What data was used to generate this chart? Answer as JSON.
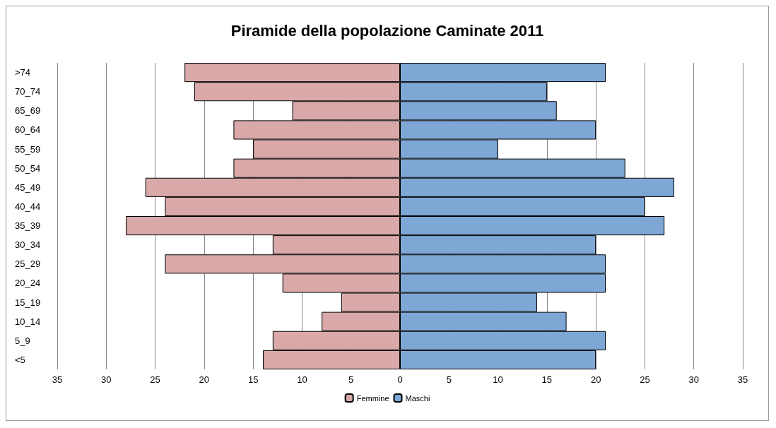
{
  "chart_data": {
    "type": "bar",
    "orientation": "horizontal",
    "title": "Piramide della popolazione Caminate 2011",
    "categories": [
      ">74",
      "70_74",
      "65_69",
      "60_64",
      "55_59",
      "50_54",
      "45_49",
      "40_44",
      "35_39",
      "30_34",
      "25_29",
      "20_24",
      "15_19",
      "10_14",
      "5_9",
      "<5"
    ],
    "series": [
      {
        "name": "Femmine",
        "color": "#d8a9a8",
        "values": [
          -22,
          -21,
          -11,
          -17,
          -15,
          -17,
          -26,
          -24,
          -28,
          -13,
          -24,
          -12,
          -6,
          -8,
          -13,
          -14
        ]
      },
      {
        "name": "Maschi",
        "color": "#7ea7d6",
        "values": [
          21,
          15,
          16,
          20,
          10,
          23,
          28,
          25,
          27,
          20,
          21,
          21,
          14,
          17,
          21,
          20
        ]
      }
    ],
    "xlim": [
      -35,
      35
    ],
    "xticks": [
      {
        "value": -35,
        "label": "35"
      },
      {
        "value": -30,
        "label": "30"
      },
      {
        "value": -25,
        "label": "25"
      },
      {
        "value": -20,
        "label": "20"
      },
      {
        "value": -15,
        "label": "15"
      },
      {
        "value": -10,
        "label": "10"
      },
      {
        "value": -5,
        "label": "5"
      },
      0,
      5,
      10,
      15,
      20,
      25,
      30,
      35
    ],
    "grid": "x",
    "legend": "bottom",
    "stacked": true
  }
}
